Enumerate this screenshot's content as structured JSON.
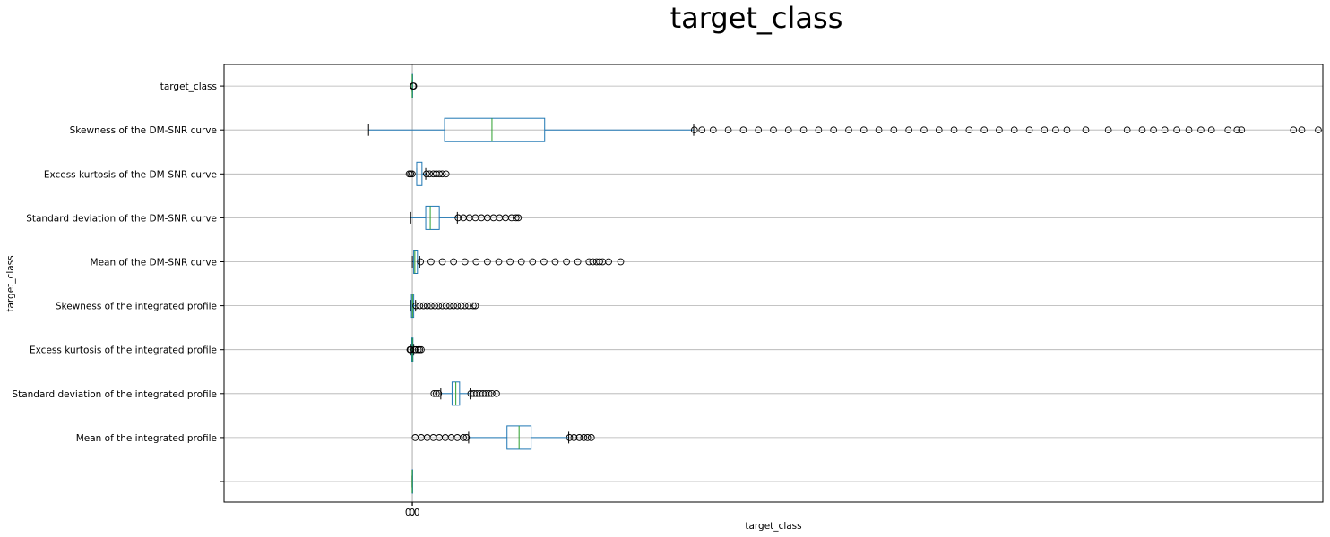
{
  "chart_data": {
    "type": "box",
    "orientation": "horizontal",
    "title": "target_class",
    "xlabel": "target_class",
    "ylabel": "target_class",
    "xlim": [
      -25,
      121
    ],
    "grid": true,
    "x_ticks": [
      {
        "value": 0,
        "label": "0"
      },
      {
        "value": 0.03,
        "label": "0.0"
      }
    ],
    "colors": {
      "box": "#1f77b4",
      "median": "#2ca02c",
      "grid": "#b0b0b0",
      "flier": "#000000"
    },
    "boxes": [
      {
        "label": "",
        "whislo": 0,
        "q1": 0,
        "med": 0,
        "q3": 0,
        "whishi": 0,
        "fliers": []
      },
      {
        "label": "Mean of the integrated profile",
        "whislo": 7.5,
        "q1": 12.6,
        "med": 14.2,
        "q3": 15.8,
        "whishi": 20.8,
        "fliers": [
          0.4,
          1.2,
          2.0,
          2.8,
          3.6,
          4.4,
          5.2,
          6.0,
          6.8,
          7.2,
          20.9,
          21.5,
          22.2,
          22.8,
          23.3,
          23.8
        ]
      },
      {
        "label": "Standard deviation of the integrated profile",
        "whislo": 3.8,
        "q1": 5.3,
        "med": 5.8,
        "q3": 6.3,
        "whishi": 7.7,
        "fliers": [
          2.9,
          3.2,
          3.5,
          7.8,
          8.2,
          8.6,
          9.0,
          9.4,
          9.8,
          10.2,
          10.6,
          11.2
        ]
      },
      {
        "label": "Excess kurtosis of the integrated profile",
        "whislo": -0.2,
        "q1": -0.05,
        "med": 0.03,
        "q3": 0.1,
        "whishi": 0.2,
        "fliers": [
          -0.3,
          -0.2,
          0.3,
          0.5,
          0.8,
          1.0,
          1.2
        ]
      },
      {
        "label": "Skewness of the integrated profile",
        "whislo": -0.2,
        "q1": -0.1,
        "med": 0.05,
        "q3": 0.2,
        "whishi": 0.45,
        "fliers": [
          0.5,
          1.0,
          1.5,
          2.0,
          2.5,
          3.0,
          3.5,
          4.0,
          4.5,
          5.0,
          5.5,
          6.0,
          6.5,
          7.0,
          7.5,
          8.1,
          8.4
        ]
      },
      {
        "label": "Mean of the DM-SNR curve",
        "whislo": 0.02,
        "q1": 0.2,
        "med": 0.35,
        "q3": 0.7,
        "whishi": 1.0,
        "fliers": [
          1.1,
          2.5,
          4.0,
          5.5,
          7.0,
          8.5,
          10.0,
          11.5,
          13.0,
          14.5,
          16.0,
          17.5,
          19.0,
          20.5,
          22.0,
          23.5,
          24.0,
          24.5,
          24.9,
          25.3,
          26.1,
          27.7
        ]
      },
      {
        "label": "Standard deviation of the DM-SNR curve",
        "whislo": -0.2,
        "q1": 1.8,
        "med": 2.4,
        "q3": 3.6,
        "whishi": 6.0,
        "fliers": [
          6.1,
          6.8,
          7.6,
          8.4,
          9.2,
          10.0,
          10.8,
          11.6,
          12.4,
          13.2,
          13.8,
          14.1
        ]
      },
      {
        "label": "Excess kurtosis of the DM-SNR curve",
        "whislo": 0.6,
        "q1": 0.6,
        "med": 0.9,
        "q3": 1.3,
        "whishi": 1.8,
        "fliers": [
          -0.4,
          -0.2,
          0.0,
          1.9,
          2.3,
          2.8,
          3.2,
          3.6,
          4.0,
          4.5
        ]
      },
      {
        "label": "Skewness of the DM-SNR curve",
        "whislo": -5.8,
        "q1": 4.3,
        "med": 10.6,
        "q3": 17.6,
        "whishi": 37.4,
        "fliers": [
          37.5,
          38.5,
          40.0,
          42.0,
          44.0,
          46.0,
          48.0,
          50.0,
          52.0,
          54.0,
          56.0,
          58.0,
          60.0,
          62.0,
          64.0,
          66.0,
          68.0,
          70.0,
          72.0,
          74.0,
          76.0,
          78.0,
          80.0,
          82.0,
          84.0,
          85.5,
          87.0,
          89.5,
          92.5,
          95.0,
          97.0,
          98.5,
          100.0,
          101.6,
          103.2,
          104.8,
          106.2,
          108.4,
          109.6,
          110.2,
          117.1,
          118.2,
          120.4
        ]
      },
      {
        "label": "target_class",
        "whislo": 0,
        "q1": 0,
        "med": 0,
        "q3": 0,
        "whishi": 0,
        "fliers": [
          0.1,
          0.2
        ]
      }
    ]
  }
}
